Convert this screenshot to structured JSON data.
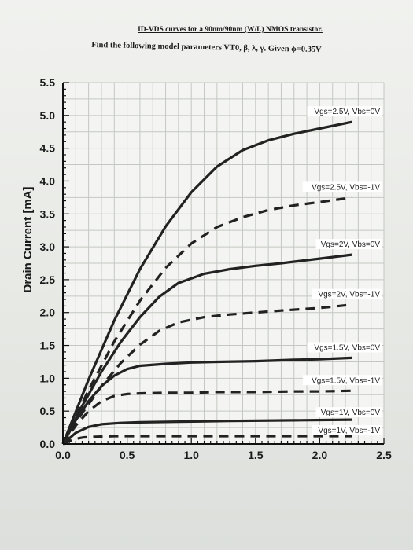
{
  "header": {
    "title": "ID-VDS curves for a 90nm/90nm (W/L) NMOS transistor.",
    "question": "Find the following model parameters VT0, β, λ, γ. Given ϕ=0.35V"
  },
  "colors": {
    "curve": "#222222",
    "grid": "#c4c7c2",
    "axis": "#111111",
    "label_bg": "#ffffff"
  },
  "chart_data": {
    "type": "line",
    "title": "",
    "xlabel": "",
    "ylabel": "Drain Current [mA]",
    "xlim": [
      0,
      2.5
    ],
    "ylim": [
      0,
      5.5
    ],
    "grid": true,
    "x_ticks": [
      "0.0",
      "0.5",
      "1.0",
      "1.5",
      "2.0",
      "2.5"
    ],
    "y_ticks": [
      "0.0",
      "0.5",
      "1.0",
      "1.5",
      "2.0",
      "2.5",
      "3.0",
      "3.5",
      "4.0",
      "4.5",
      "5.0",
      "5.5"
    ],
    "series": [
      {
        "name": "Vgs=2.5V, Vbs=0V",
        "style": "solid",
        "x": [
          0,
          0.2,
          0.4,
          0.6,
          0.8,
          1.0,
          1.2,
          1.4,
          1.6,
          1.8,
          2.0,
          2.25
        ],
        "y": [
          0,
          0.98,
          1.88,
          2.66,
          3.31,
          3.83,
          4.22,
          4.47,
          4.62,
          4.72,
          4.8,
          4.9
        ]
      },
      {
        "name": "Vgs=2.5V, Vbs=-1V",
        "style": "dashed",
        "x": [
          0,
          0.2,
          0.4,
          0.6,
          0.8,
          1.0,
          1.2,
          1.4,
          1.6,
          1.8,
          2.0,
          2.25
        ],
        "y": [
          0,
          0.82,
          1.56,
          2.18,
          2.68,
          3.05,
          3.3,
          3.45,
          3.56,
          3.63,
          3.68,
          3.75
        ]
      },
      {
        "name": "Vgs=2V, Vbs=0V",
        "style": "solid",
        "x": [
          0,
          0.15,
          0.3,
          0.45,
          0.6,
          0.75,
          0.9,
          1.1,
          1.3,
          1.5,
          1.7,
          2.0,
          2.25
        ],
        "y": [
          0,
          0.58,
          1.1,
          1.55,
          1.93,
          2.24,
          2.45,
          2.59,
          2.66,
          2.71,
          2.75,
          2.82,
          2.88
        ]
      },
      {
        "name": "Vgs=2V, Vbs=-1V",
        "style": "dashed",
        "x": [
          0,
          0.15,
          0.3,
          0.45,
          0.6,
          0.75,
          0.9,
          1.1,
          1.3,
          1.5,
          1.7,
          2.0,
          2.25
        ],
        "y": [
          0,
          0.47,
          0.88,
          1.23,
          1.51,
          1.72,
          1.85,
          1.93,
          1.97,
          2.0,
          2.03,
          2.07,
          2.12
        ]
      },
      {
        "name": "Vgs=1.5V, Vbs=0V",
        "style": "solid",
        "x": [
          0,
          0.1,
          0.2,
          0.3,
          0.4,
          0.5,
          0.6,
          0.8,
          1.0,
          1.2,
          1.5,
          1.8,
          2.0,
          2.25
        ],
        "y": [
          0,
          0.36,
          0.65,
          0.88,
          1.04,
          1.14,
          1.19,
          1.22,
          1.24,
          1.25,
          1.26,
          1.28,
          1.29,
          1.31
        ]
      },
      {
        "name": "Vgs=1.5V, Vbs=-1V",
        "style": "dashed",
        "x": [
          0,
          0.1,
          0.2,
          0.3,
          0.4,
          0.5,
          0.6,
          0.8,
          1.0,
          1.2,
          1.5,
          1.8,
          2.0,
          2.25
        ],
        "y": [
          0,
          0.28,
          0.5,
          0.65,
          0.73,
          0.76,
          0.77,
          0.78,
          0.78,
          0.79,
          0.79,
          0.8,
          0.8,
          0.81
        ]
      },
      {
        "name": "Vgs=1V, Vbs=0V",
        "style": "solid",
        "x": [
          0,
          0.1,
          0.2,
          0.3,
          0.45,
          0.6,
          0.9,
          1.3,
          1.8,
          2.25
        ],
        "y": [
          0,
          0.17,
          0.26,
          0.3,
          0.32,
          0.33,
          0.34,
          0.35,
          0.36,
          0.37
        ]
      },
      {
        "name": "Vgs=1V, Vbs=-1V",
        "style": "dashed",
        "x": [
          0,
          0.08,
          0.16,
          0.25,
          0.4,
          0.7,
          1.2,
          1.8,
          2.25
        ],
        "y": [
          0,
          0.07,
          0.1,
          0.11,
          0.12,
          0.12,
          0.12,
          0.12,
          0.12
        ]
      }
    ]
  }
}
